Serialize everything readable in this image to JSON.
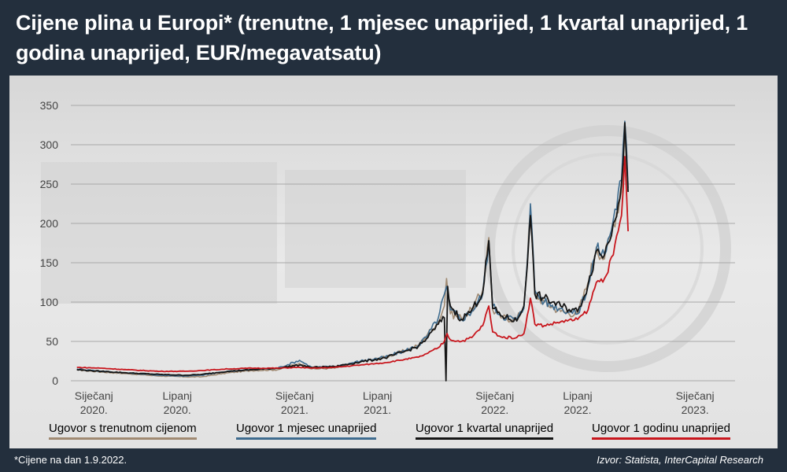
{
  "header": {
    "title": "Cijene plina u Europi* (trenutne, 1 mjesec unaprijed, 1 kvartal unaprijed, 1 godina unaprijed, EUR/megavatsatu)"
  },
  "footer": {
    "footnote": "*Cijene na dan 1.9.2022.",
    "source": "Izvor: Statista, InterCapital Research"
  },
  "colors": {
    "background": "#232f3d",
    "panel": "#e6e6e6",
    "grid": "#a8a8a8"
  },
  "chart_data": {
    "type": "line",
    "title": "Cijene plina u Europi* (trenutne, 1 mjesec unaprijed, 1 kvartal unaprijed, 1 godina unaprijed, EUR/megavatsatu)",
    "xlabel": "",
    "ylabel": "",
    "ylim": [
      0,
      350
    ],
    "yticks": [
      0,
      50,
      100,
      150,
      200,
      250,
      300,
      350
    ],
    "xlim": [
      "2019-11-20",
      "2023-03-15"
    ],
    "xticks": [
      {
        "date": "2020-01-01",
        "label": [
          "Siječanj",
          "2020."
        ]
      },
      {
        "date": "2020-06-01",
        "label": [
          "Lipanj",
          "2020."
        ]
      },
      {
        "date": "2021-01-01",
        "label": [
          "Siječanj",
          "2021."
        ]
      },
      {
        "date": "2021-06-01",
        "label": [
          "Lipanj",
          "2021."
        ]
      },
      {
        "date": "2022-01-01",
        "label": [
          "Siječanj",
          "2022."
        ]
      },
      {
        "date": "2022-06-01",
        "label": [
          "Lipanj",
          "2022."
        ]
      },
      {
        "date": "2023-01-01",
        "label": [
          "Siječanj",
          "2023."
        ]
      }
    ],
    "grid": true,
    "legend_position": "bottom",
    "series": [
      {
        "name": "Ugovor s trenutnom cijenom",
        "color": "#a08a72",
        "points": [
          [
            "2019-12-01",
            14
          ],
          [
            "2020-01-15",
            11
          ],
          [
            "2020-03-01",
            9
          ],
          [
            "2020-05-01",
            6
          ],
          [
            "2020-06-15",
            5
          ],
          [
            "2020-07-15",
            5
          ],
          [
            "2020-09-01",
            10
          ],
          [
            "2020-10-15",
            13
          ],
          [
            "2020-12-01",
            14
          ],
          [
            "2021-01-10",
            22
          ],
          [
            "2021-02-01",
            15
          ],
          [
            "2021-03-15",
            16
          ],
          [
            "2021-05-01",
            24
          ],
          [
            "2021-06-15",
            30
          ],
          [
            "2021-07-20",
            38
          ],
          [
            "2021-08-15",
            45
          ],
          [
            "2021-09-01",
            60
          ],
          [
            "2021-09-20",
            75
          ],
          [
            "2021-10-01",
            95
          ],
          [
            "2021-10-05",
            130
          ],
          [
            "2021-10-12",
            85
          ],
          [
            "2021-11-01",
            80
          ],
          [
            "2021-11-20",
            90
          ],
          [
            "2021-12-10",
            115
          ],
          [
            "2021-12-21",
            182
          ],
          [
            "2021-12-28",
            90
          ],
          [
            "2022-01-15",
            80
          ],
          [
            "2022-02-10",
            78
          ],
          [
            "2022-02-23",
            95
          ],
          [
            "2022-03-07",
            215
          ],
          [
            "2022-03-15",
            110
          ],
          [
            "2022-04-01",
            100
          ],
          [
            "2022-05-01",
            88
          ],
          [
            "2022-06-01",
            85
          ],
          [
            "2022-06-20",
            125
          ],
          [
            "2022-07-05",
            170
          ],
          [
            "2022-07-20",
            155
          ],
          [
            "2022-08-05",
            200
          ],
          [
            "2022-08-20",
            240
          ],
          [
            "2022-08-26",
            320
          ],
          [
            "2022-09-01",
            250
          ]
        ]
      },
      {
        "name": "Ugovor 1 mjesec unaprijed",
        "color": "#3f6c8f",
        "points": [
          [
            "2019-12-01",
            15
          ],
          [
            "2020-01-15",
            12
          ],
          [
            "2020-03-01",
            10
          ],
          [
            "2020-05-01",
            7
          ],
          [
            "2020-06-15",
            6
          ],
          [
            "2020-07-15",
            7
          ],
          [
            "2020-09-01",
            12
          ],
          [
            "2020-10-15",
            14
          ],
          [
            "2020-12-01",
            16
          ],
          [
            "2021-01-10",
            26
          ],
          [
            "2021-02-01",
            17
          ],
          [
            "2021-03-15",
            18
          ],
          [
            "2021-05-01",
            25
          ],
          [
            "2021-06-15",
            30
          ],
          [
            "2021-07-20",
            38
          ],
          [
            "2021-08-15",
            45
          ],
          [
            "2021-09-01",
            58
          ],
          [
            "2021-09-20",
            80
          ],
          [
            "2021-10-01",
            110
          ],
          [
            "2021-10-05",
            120
          ],
          [
            "2021-10-12",
            90
          ],
          [
            "2021-11-01",
            78
          ],
          [
            "2021-11-20",
            88
          ],
          [
            "2021-12-10",
            110
          ],
          [
            "2021-12-21",
            178
          ],
          [
            "2021-12-28",
            95
          ],
          [
            "2022-01-15",
            82
          ],
          [
            "2022-02-10",
            78
          ],
          [
            "2022-02-23",
            92
          ],
          [
            "2022-03-07",
            225
          ],
          [
            "2022-03-15",
            115
          ],
          [
            "2022-04-01",
            100
          ],
          [
            "2022-05-01",
            92
          ],
          [
            "2022-06-01",
            85
          ],
          [
            "2022-06-20",
            120
          ],
          [
            "2022-07-05",
            168
          ],
          [
            "2022-07-20",
            160
          ],
          [
            "2022-08-05",
            205
          ],
          [
            "2022-08-20",
            255
          ],
          [
            "2022-08-26",
            330
          ],
          [
            "2022-09-01",
            245
          ]
        ]
      },
      {
        "name": "Ugovor 1 kvartal unaprijed",
        "color": "#151515",
        "points": [
          [
            "2019-12-01",
            14
          ],
          [
            "2020-01-15",
            12
          ],
          [
            "2020-03-01",
            10
          ],
          [
            "2020-05-01",
            8
          ],
          [
            "2020-06-15",
            7
          ],
          [
            "2020-07-15",
            8
          ],
          [
            "2020-09-01",
            12
          ],
          [
            "2020-10-15",
            14
          ],
          [
            "2020-12-01",
            16
          ],
          [
            "2021-01-10",
            20
          ],
          [
            "2021-02-01",
            17
          ],
          [
            "2021-03-15",
            18
          ],
          [
            "2021-05-01",
            24
          ],
          [
            "2021-06-15",
            29
          ],
          [
            "2021-07-20",
            37
          ],
          [
            "2021-08-15",
            44
          ],
          [
            "2021-09-01",
            55
          ],
          [
            "2021-09-20",
            72
          ],
          [
            "2021-10-01",
            80
          ],
          [
            "2021-10-04",
            0
          ],
          [
            "2021-10-07",
            120
          ],
          [
            "2021-10-12",
            95
          ],
          [
            "2021-11-01",
            78
          ],
          [
            "2021-11-20",
            90
          ],
          [
            "2021-12-10",
            112
          ],
          [
            "2021-12-21",
            178
          ],
          [
            "2021-12-28",
            92
          ],
          [
            "2022-01-15",
            82
          ],
          [
            "2022-02-10",
            76
          ],
          [
            "2022-02-23",
            95
          ],
          [
            "2022-03-07",
            210
          ],
          [
            "2022-03-15",
            110
          ],
          [
            "2022-04-01",
            105
          ],
          [
            "2022-05-01",
            95
          ],
          [
            "2022-06-01",
            88
          ],
          [
            "2022-06-20",
            122
          ],
          [
            "2022-07-05",
            165
          ],
          [
            "2022-07-20",
            160
          ],
          [
            "2022-08-05",
            200
          ],
          [
            "2022-08-20",
            250
          ],
          [
            "2022-08-26",
            328
          ],
          [
            "2022-09-01",
            240
          ]
        ]
      },
      {
        "name": "Ugovor 1 godinu unaprijed",
        "color": "#c8161d",
        "points": [
          [
            "2019-12-01",
            17
          ],
          [
            "2020-01-15",
            16
          ],
          [
            "2020-03-01",
            14
          ],
          [
            "2020-05-01",
            12
          ],
          [
            "2020-06-15",
            12
          ],
          [
            "2020-07-15",
            13
          ],
          [
            "2020-09-01",
            15
          ],
          [
            "2020-10-15",
            16
          ],
          [
            "2020-12-01",
            16
          ],
          [
            "2021-01-10",
            17
          ],
          [
            "2021-02-01",
            16
          ],
          [
            "2021-03-15",
            17
          ],
          [
            "2021-05-01",
            20
          ],
          [
            "2021-06-15",
            23
          ],
          [
            "2021-07-20",
            27
          ],
          [
            "2021-08-15",
            30
          ],
          [
            "2021-09-01",
            35
          ],
          [
            "2021-09-20",
            42
          ],
          [
            "2021-10-01",
            50
          ],
          [
            "2021-10-06",
            60
          ],
          [
            "2021-10-12",
            52
          ],
          [
            "2021-11-01",
            50
          ],
          [
            "2021-11-20",
            55
          ],
          [
            "2021-12-10",
            70
          ],
          [
            "2021-12-21",
            95
          ],
          [
            "2021-12-28",
            62
          ],
          [
            "2022-01-15",
            55
          ],
          [
            "2022-02-10",
            55
          ],
          [
            "2022-02-23",
            60
          ],
          [
            "2022-03-07",
            105
          ],
          [
            "2022-03-15",
            72
          ],
          [
            "2022-04-01",
            70
          ],
          [
            "2022-05-01",
            75
          ],
          [
            "2022-06-01",
            78
          ],
          [
            "2022-06-20",
            90
          ],
          [
            "2022-07-05",
            125
          ],
          [
            "2022-07-20",
            130
          ],
          [
            "2022-08-05",
            160
          ],
          [
            "2022-08-20",
            210
          ],
          [
            "2022-08-26",
            285
          ],
          [
            "2022-09-01",
            190
          ]
        ]
      }
    ]
  }
}
